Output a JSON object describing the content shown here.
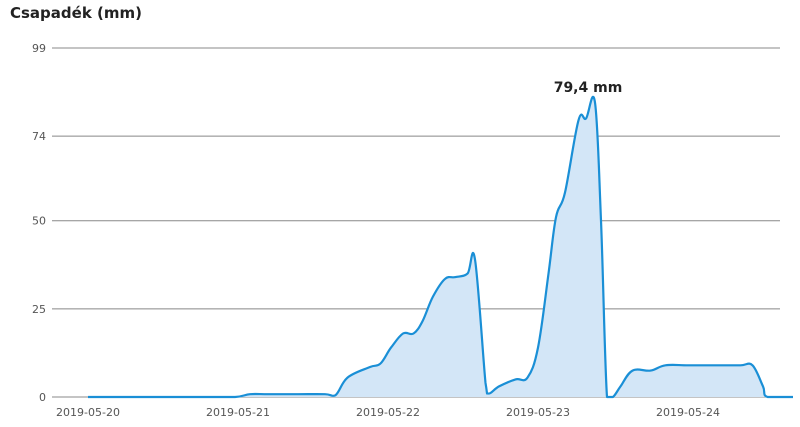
{
  "chart_data": {
    "type": "area",
    "title": "Csapadék (mm)",
    "xlabel": "",
    "ylabel": "",
    "ylim": [
      0,
      99
    ],
    "y_ticks": [
      "0",
      "25",
      "50",
      "74",
      "99"
    ],
    "x_ticks": [
      "2019-05-20",
      "2019-05-21",
      "2019-05-22",
      "2019-05-23",
      "2019-05-24"
    ],
    "grid": true,
    "line_color": "#1a8fd6",
    "fill_color": "#d3e6f7",
    "annotation": {
      "text": "79,4 mm",
      "x": 3.36,
      "y": 83.7
    },
    "series": [
      {
        "values": [
          [
            0.0,
            0
          ],
          [
            0.25,
            0
          ],
          [
            0.5,
            0
          ],
          [
            0.75,
            0
          ],
          [
            0.98,
            0
          ],
          [
            1.08,
            0.8
          ],
          [
            1.2,
            0.8
          ],
          [
            1.4,
            0.8
          ],
          [
            1.58,
            0.8
          ],
          [
            1.65,
            0.5
          ],
          [
            1.73,
            5.5
          ],
          [
            1.88,
            8.5
          ],
          [
            1.95,
            9.5
          ],
          [
            2.02,
            14
          ],
          [
            2.1,
            18
          ],
          [
            2.17,
            18
          ],
          [
            2.23,
            21.5
          ],
          [
            2.3,
            28.5
          ],
          [
            2.38,
            33.5
          ],
          [
            2.45,
            34
          ],
          [
            2.53,
            35
          ],
          [
            2.58,
            39
          ],
          [
            2.65,
            4
          ],
          [
            2.67,
            1
          ],
          [
            2.74,
            3
          ],
          [
            2.85,
            5
          ],
          [
            2.93,
            5.5
          ],
          [
            3.0,
            14
          ],
          [
            3.07,
            35
          ],
          [
            3.12,
            51
          ],
          [
            3.18,
            58
          ],
          [
            3.27,
            78.5
          ],
          [
            3.32,
            79
          ],
          [
            3.38,
            83.5
          ],
          [
            3.42,
            50
          ],
          [
            3.46,
            0
          ],
          [
            3.5,
            0
          ],
          [
            3.55,
            3
          ],
          [
            3.63,
            7.5
          ],
          [
            3.75,
            7.5
          ],
          [
            3.85,
            9
          ],
          [
            4.0,
            9
          ],
          [
            4.2,
            9
          ],
          [
            4.35,
            9
          ],
          [
            4.43,
            9
          ],
          [
            4.5,
            3
          ],
          [
            4.53,
            0
          ],
          [
            4.7,
            0
          ]
        ]
      }
    ]
  }
}
